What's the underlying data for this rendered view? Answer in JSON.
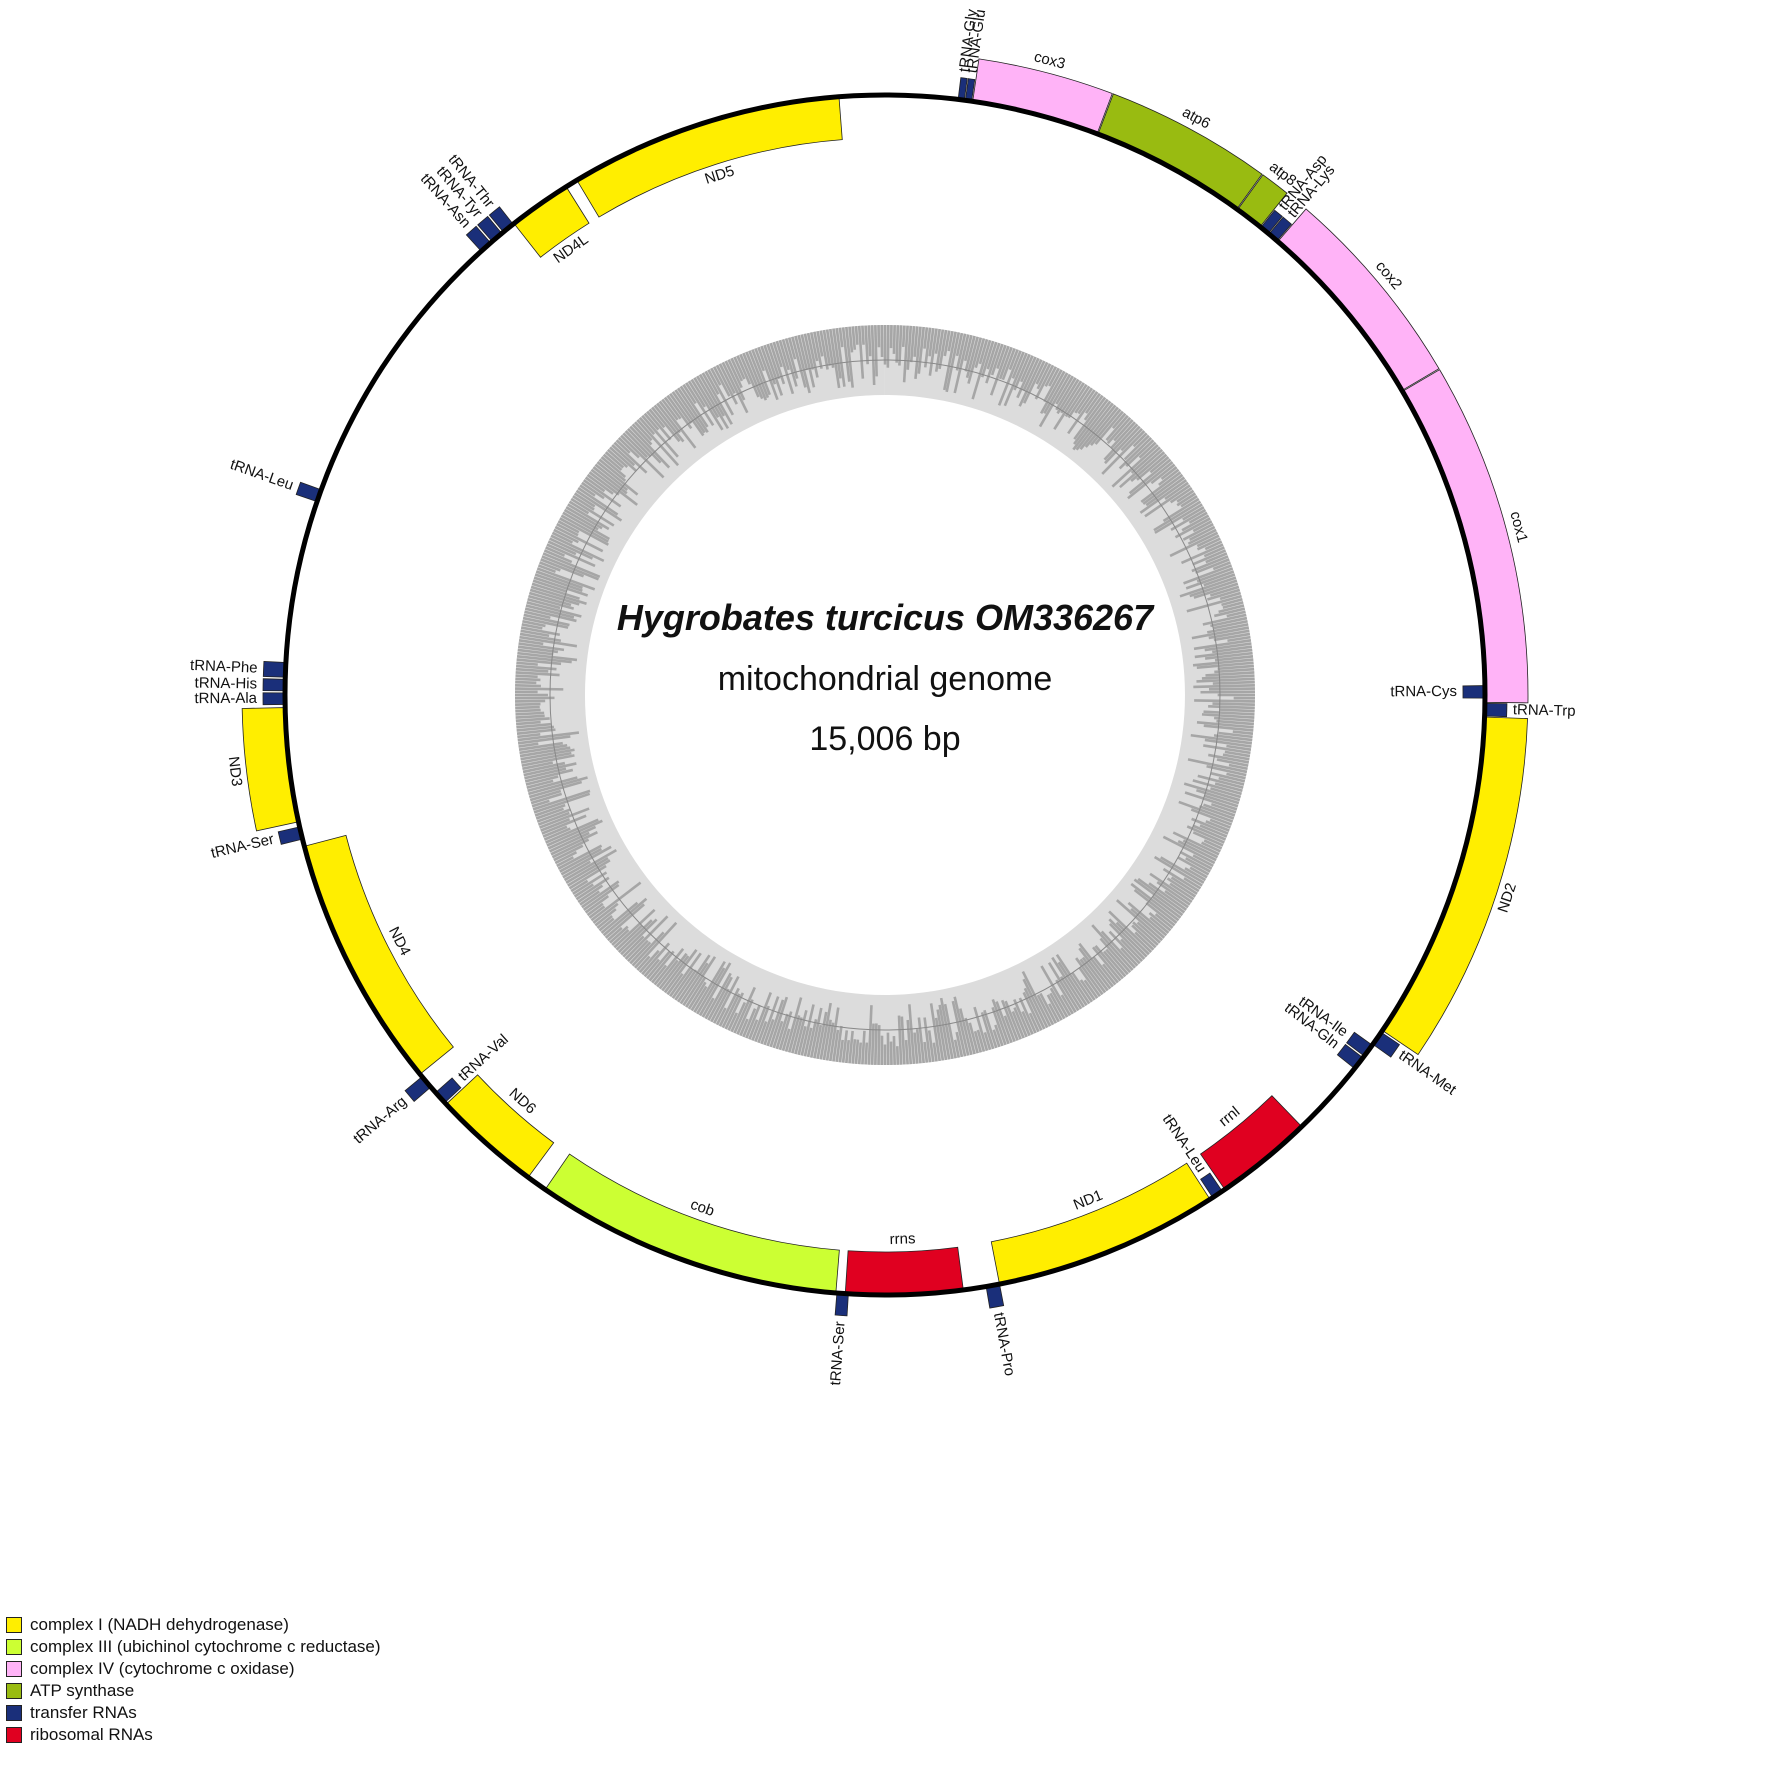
{
  "title": {
    "species": "Hygrobates turcicus OM336267",
    "subtitle": "mitochondrial genome",
    "length": "15,006 bp"
  },
  "colors": {
    "complex1": "#ffee00",
    "complex3": "#ccff33",
    "complex4": "#ffb3f7",
    "atp": "#99bb11",
    "trna": "#1a2f7a",
    "rrna": "#e00020",
    "gc_outer": "#a6a6a6",
    "gc_inner": "#dcdcdc"
  },
  "genes": [
    {
      "name": "tRNA-Gly",
      "strand": "outer",
      "type": "trna",
      "start": 7.0,
      "end": 7.6
    },
    {
      "name": "tRNA-Glu",
      "strand": "outer",
      "type": "trna",
      "start": 7.7,
      "end": 8.3
    },
    {
      "name": "cox3",
      "strand": "outer",
      "type": "complex4",
      "start": 8.4,
      "end": 20.7
    },
    {
      "name": "atp6",
      "strand": "outer",
      "type": "atp",
      "start": 20.8,
      "end": 35.9
    },
    {
      "name": "atp8",
      "strand": "outer",
      "type": "atp",
      "start": 36.0,
      "end": 38.7
    },
    {
      "name": "tRNA-Asp",
      "strand": "outer",
      "type": "trna",
      "start": 38.8,
      "end": 39.7
    },
    {
      "name": "tRNA-Lys",
      "strand": "outer",
      "type": "trna",
      "start": 39.8,
      "end": 40.8
    },
    {
      "name": "cox2",
      "strand": "outer",
      "type": "complex4",
      "start": 40.9,
      "end": 59.5
    },
    {
      "name": "cox1",
      "strand": "outer",
      "type": "complex4",
      "start": 59.6,
      "end": 90.7
    },
    {
      "name": "tRNA-Trp",
      "strand": "outer",
      "type": "trna",
      "start": 90.8,
      "end": 92.0
    },
    {
      "name": "tRNA-Cys",
      "strand": "inner",
      "type": "trna",
      "start": 89.1,
      "end": 90.3
    },
    {
      "name": "ND2",
      "strand": "outer",
      "type": "complex1",
      "start": 92.1,
      "end": 124.0
    },
    {
      "name": "tRNA-Met",
      "strand": "outer",
      "type": "trna",
      "start": 124.2,
      "end": 125.6
    },
    {
      "name": "tRNA-Ile",
      "strand": "inner",
      "type": "trna",
      "start": 125.7,
      "end": 127.0
    },
    {
      "name": "tRNA-Gln",
      "strand": "inner",
      "type": "trna",
      "start": 127.2,
      "end": 128.5
    },
    {
      "name": "rrnl",
      "strand": "inner",
      "type": "rrna",
      "start": 136.0,
      "end": 145.5
    },
    {
      "name": "tRNA-Leu",
      "strand": "inner",
      "type": "trna",
      "start": 145.8,
      "end": 146.9
    },
    {
      "name": "ND1",
      "strand": "inner",
      "type": "complex1",
      "start": 147.2,
      "end": 169.0
    },
    {
      "name": "tRNA-Pro",
      "strand": "outer",
      "type": "trna",
      "start": 169.0,
      "end": 170.3
    },
    {
      "name": "rrns",
      "strand": "inner",
      "type": "rrna",
      "start": 172.5,
      "end": 183.8
    },
    {
      "name": "tRNA-Ser",
      "strand": "outer",
      "type": "trna",
      "start": 183.5,
      "end": 184.6
    },
    {
      "name": "cob",
      "strand": "inner",
      "type": "complex3",
      "start": 184.7,
      "end": 214.5
    },
    {
      "name": "ND6",
      "strand": "inner",
      "type": "complex1",
      "start": 216.5,
      "end": 227.0
    },
    {
      "name": "tRNA-Val",
      "strand": "inner",
      "type": "trna",
      "start": 227.2,
      "end": 228.5
    },
    {
      "name": "tRNA-Arg",
      "strand": "outer",
      "type": "trna",
      "start": 229.2,
      "end": 230.5
    },
    {
      "name": "ND4",
      "strand": "inner",
      "type": "complex1",
      "start": 230.8,
      "end": 255.4
    },
    {
      "name": "tRNA-Ser",
      "strand": "outer",
      "type": "trna",
      "start": 256.1,
      "end": 257.3
    },
    {
      "name": "ND3",
      "strand": "outer",
      "type": "complex1",
      "start": 257.8,
      "end": 268.8
    },
    {
      "name": "tRNA-Ala",
      "strand": "outer",
      "type": "trna",
      "start": 269.1,
      "end": 270.2
    },
    {
      "name": "tRNA-His",
      "strand": "outer",
      "type": "trna",
      "start": 270.4,
      "end": 271.5
    },
    {
      "name": "tRNA-Phe",
      "strand": "outer",
      "type": "trna",
      "start": 271.7,
      "end": 273.1
    },
    {
      "name": "tRNA-Leu",
      "strand": "outer",
      "type": "trna",
      "start": 288.8,
      "end": 290.0
    },
    {
      "name": "tRNA-Asn",
      "strand": "outer",
      "type": "trna",
      "start": 317.7,
      "end": 318.9
    },
    {
      "name": "tRNA-Tyr",
      "strand": "outer",
      "type": "trna",
      "start": 319.1,
      "end": 320.3
    },
    {
      "name": "tRNA-Thr",
      "strand": "outer",
      "type": "trna",
      "start": 320.5,
      "end": 321.7
    },
    {
      "name": "ND4L",
      "strand": "inner",
      "type": "complex1",
      "start": 321.8,
      "end": 327.9
    },
    {
      "name": "ND5",
      "strand": "inner",
      "type": "complex1",
      "start": 329.1,
      "end": 355.6
    }
  ],
  "legend": [
    {
      "label": "complex I (NADH dehydrogenase)",
      "color": "#ffee00"
    },
    {
      "label": "complex III (ubichinol cytochrome c reductase)",
      "color": "#ccff33"
    },
    {
      "label": "complex IV (cytochrome c oxidase)",
      "color": "#ffb3f7"
    },
    {
      "label": "ATP synthase",
      "color": "#99bb11"
    },
    {
      "label": "transfer RNAs",
      "color": "#1a2f7a"
    },
    {
      "label": "ribosomal RNAs",
      "color": "#e00020"
    }
  ]
}
